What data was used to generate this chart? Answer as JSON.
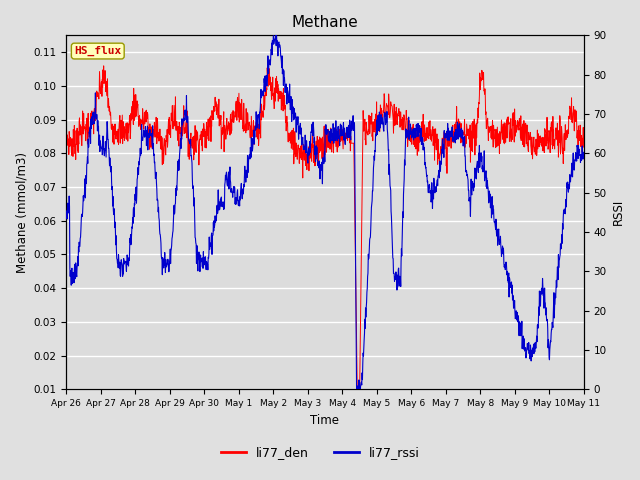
{
  "title": "Methane",
  "ylabel_left": "Methane (mmol/m3)",
  "ylabel_right": "RSSI",
  "xlabel": "Time",
  "ylim_left": [
    0.01,
    0.115
  ],
  "ylim_right": [
    0,
    90
  ],
  "yticks_left": [
    0.01,
    0.02,
    0.03,
    0.04,
    0.05,
    0.06,
    0.07,
    0.08,
    0.09,
    0.1,
    0.11
  ],
  "yticks_right": [
    0,
    10,
    20,
    30,
    40,
    50,
    60,
    70,
    80,
    90
  ],
  "xtick_labels": [
    "Apr 26",
    "Apr 27",
    "Apr 28",
    "Apr 29",
    "Apr 30",
    "May 1",
    "May 2",
    "May 3",
    "May 4",
    "May 5",
    "May 6",
    "May 7",
    "May 8",
    "May 9",
    "May 10",
    "May 11"
  ],
  "color_red": "#FF0000",
  "color_blue": "#0000CC",
  "legend_entries": [
    "li77_den",
    "li77_rssi"
  ],
  "hs_flux_label": "HS_flux",
  "hs_flux_bg": "#FFFFBB",
  "hs_flux_border": "#999900",
  "hs_flux_text_color": "#CC0000",
  "fig_bg": "#E0E0E0",
  "plot_bg": "#DCDCDC",
  "grid_color": "#FFFFFF",
  "n_points": 1500
}
